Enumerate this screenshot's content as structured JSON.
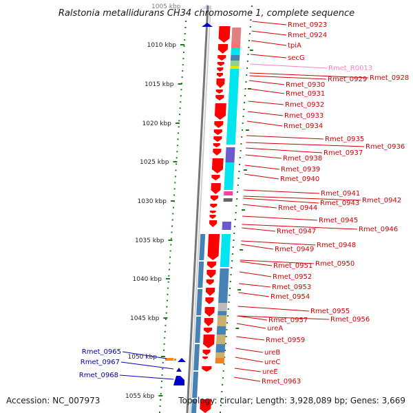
{
  "title": "Ralstonia metallidurans CH34 chromosome 1, complete sequence",
  "top_faint_label": "1005 kbp",
  "accession": "Accession: NC_007973",
  "topology": "Topology: circular; Length: 3,928,089 bp; Genes: 3,669",
  "colors": {
    "gene_red": "#ff0000",
    "gene_blue": "#0000cc",
    "gene_orange": "#ff8800",
    "rna_pink": "#ff80c0",
    "cog_cyan": "#00e5ee",
    "cog_steel": "#4682b4",
    "cog_khaki": "#c8b070",
    "cog_purple": "#6a5acd",
    "gc_green": "#1a7a1a",
    "backbone": "#888888"
  },
  "scale_labels": [
    "1010 kbp",
    "1015 kbp",
    "1020 kbp",
    "1025 kbp",
    "1030 kbp",
    "1035 kbp",
    "1040 kbp",
    "1045 kbp",
    "1050 kbp",
    "1055 kbp"
  ],
  "right_labels": [
    {
      "name": "Rmet_0923",
      "kind": "red"
    },
    {
      "name": "Rmet_0924",
      "kind": "red"
    },
    {
      "name": "tpiA",
      "kind": "red"
    },
    {
      "name": "secG",
      "kind": "red"
    },
    {
      "name": "Rmet_R0013",
      "kind": "pink"
    },
    {
      "name": "Rmet_0928",
      "kind": "red"
    },
    {
      "name": "Rmet_0929",
      "kind": "red"
    },
    {
      "name": "Rmet_0930",
      "kind": "red"
    },
    {
      "name": "Rmet_0931",
      "kind": "red"
    },
    {
      "name": "Rmet_0932",
      "kind": "red"
    },
    {
      "name": "Rmet_0933",
      "kind": "red"
    },
    {
      "name": "Rmet_0934",
      "kind": "red"
    },
    {
      "name": "Rmet_0935",
      "kind": "red"
    },
    {
      "name": "Rmet_0936",
      "kind": "red"
    },
    {
      "name": "Rmet_0937",
      "kind": "red"
    },
    {
      "name": "Rmet_0938",
      "kind": "red"
    },
    {
      "name": "Rmet_0939",
      "kind": "red"
    },
    {
      "name": "Rmet_0940",
      "kind": "red"
    },
    {
      "name": "Rmet_0941",
      "kind": "red"
    },
    {
      "name": "Rmet_0942",
      "kind": "red"
    },
    {
      "name": "Rmet_0943",
      "kind": "red"
    },
    {
      "name": "Rmet_0944",
      "kind": "red"
    },
    {
      "name": "Rmet_0945",
      "kind": "red"
    },
    {
      "name": "Rmet_0946",
      "kind": "red"
    },
    {
      "name": "Rmet_0947",
      "kind": "red"
    },
    {
      "name": "Rmet_0948",
      "kind": "red"
    },
    {
      "name": "Rmet_0949",
      "kind": "red"
    },
    {
      "name": "Rmet_0950",
      "kind": "red"
    },
    {
      "name": "Rmet_0951",
      "kind": "red"
    },
    {
      "name": "Rmet_0952",
      "kind": "red"
    },
    {
      "name": "Rmet_0953",
      "kind": "red"
    },
    {
      "name": "Rmet_0954",
      "kind": "red"
    },
    {
      "name": "Rmet_0955",
      "kind": "red"
    },
    {
      "name": "Rmet_0956",
      "kind": "red"
    },
    {
      "name": "Rmet_0957",
      "kind": "red"
    },
    {
      "name": "ureA",
      "kind": "red"
    },
    {
      "name": "Rmet_0959",
      "kind": "red"
    },
    {
      "name": "ureB",
      "kind": "red"
    },
    {
      "name": "ureC",
      "kind": "red"
    },
    {
      "name": "ureE",
      "kind": "red"
    },
    {
      "name": "Rmet_0963",
      "kind": "red"
    }
  ],
  "left_labels": [
    {
      "name": "Rmet_0965",
      "kind": "blue"
    },
    {
      "name": "Rmet_0967",
      "kind": "blue"
    },
    {
      "name": "Rmet_0968",
      "kind": "blue"
    }
  ]
}
